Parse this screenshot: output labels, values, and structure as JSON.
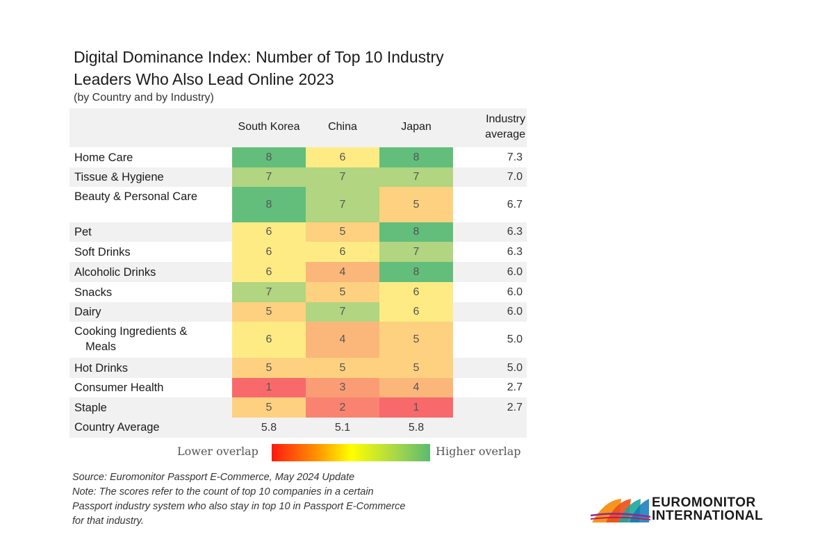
{
  "title_line1": "Digital Dominance Index: Number of Top 10 Industry",
  "title_line2": "Leaders Who Also Lead Online 2023",
  "subtitle": "(by Country and by Industry)",
  "chart_data": {
    "type": "heatmap",
    "title": "Digital Dominance Index: Number of Top 10 Industry Leaders Who Also Lead Online 2023",
    "subtitle": "(by Country and by Industry)",
    "columns": [
      "South Korea",
      "China",
      "Japan"
    ],
    "average_column_label": "Industry average",
    "rows": [
      {
        "label": "Home Care",
        "values": [
          8,
          6,
          8
        ],
        "average": "7.3"
      },
      {
        "label": "Tissue & Hygiene",
        "values": [
          7,
          7,
          7
        ],
        "average": "7.0"
      },
      {
        "label": "Beauty & Personal Care",
        "values": [
          8,
          7,
          5
        ],
        "average": "6.7"
      },
      {
        "label": "Pet",
        "values": [
          6,
          5,
          8
        ],
        "average": "6.3"
      },
      {
        "label": "Soft Drinks",
        "values": [
          6,
          6,
          7
        ],
        "average": "6.3"
      },
      {
        "label": "Alcoholic Drinks",
        "values": [
          6,
          4,
          8
        ],
        "average": "6.0"
      },
      {
        "label": "Snacks",
        "values": [
          7,
          5,
          6
        ],
        "average": "6.0"
      },
      {
        "label": "Dairy",
        "values": [
          5,
          7,
          6
        ],
        "average": "6.0"
      },
      {
        "label": "Cooking Ingredients & Meals",
        "values": [
          6,
          4,
          5
        ],
        "average": "5.0"
      },
      {
        "label": "Hot Drinks",
        "values": [
          5,
          5,
          5
        ],
        "average": "5.0"
      },
      {
        "label": "Consumer Health",
        "values": [
          1,
          3,
          4
        ],
        "average": "2.7"
      },
      {
        "label": "Staple",
        "values": [
          5,
          2,
          1
        ],
        "average": "2.7"
      }
    ],
    "country_average": {
      "label": "Country Average",
      "values": [
        "5.8",
        "5.1",
        "5.8"
      ]
    },
    "color_scale": {
      "1": "#f8696b",
      "2": "#f98370",
      "3": "#fa9d75",
      "4": "#fbb77a",
      "5": "#fdd17f",
      "6": "#ffeb84",
      "7": "#b1d580",
      "8": "#63be7b"
    },
    "legend": {
      "low_label": "Lower overlap",
      "high_label": "Higher overlap"
    }
  },
  "notes": {
    "source": "Source: Euromonitor Passport E-Commerce, May 2024 Update",
    "note_line1": "Note: The scores refer to the count of top 10 companies in a certain",
    "note_line2": "Passport industry system who also stay in top 10 in Passport E-Commerce",
    "note_line3": "for that industry."
  },
  "logo": {
    "line1": "EUROMONITOR",
    "line2": "INTERNATIONAL"
  }
}
